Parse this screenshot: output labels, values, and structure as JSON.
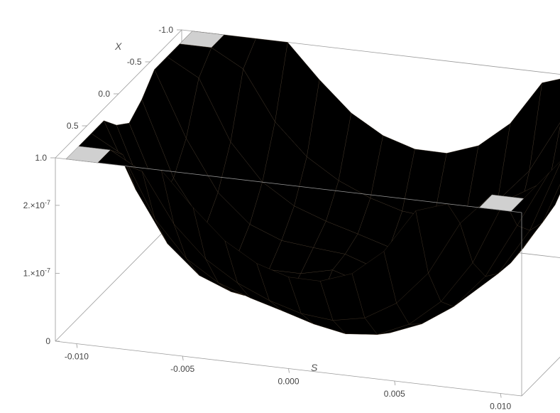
{
  "chart_data": {
    "type": "surface3d",
    "axes": {
      "s": {
        "label": "S",
        "range": [
          -0.011,
          0.011
        ],
        "ticks": [
          "-0.010",
          "-0.005",
          "0.000",
          "0.005",
          "0.010"
        ]
      },
      "x": {
        "label": "X",
        "range": [
          -1.0,
          1.0
        ],
        "ticks": [
          "-1.0",
          "-0.5",
          "0.0",
          "0.5",
          "1.0"
        ]
      },
      "z": {
        "range": [
          0,
          2.7e-07
        ],
        "ticks": [
          "0",
          "1.×10",
          "2.×10"
        ],
        "tick_exponent": "-7",
        "tick_values": [
          0,
          1e-07,
          2e-07
        ]
      }
    },
    "surface": {
      "description_free": true,
      "s_values": [
        -0.0105,
        -0.009,
        -0.0075,
        -0.006,
        -0.0045,
        -0.003,
        -0.0015,
        0.0,
        0.0015,
        0.003,
        0.0045,
        0.006,
        0.0075,
        0.009,
        0.0105
      ],
      "x_values": [
        -1.0,
        -0.8,
        -0.6,
        -0.4,
        -0.2,
        0.0,
        0.2,
        0.4,
        0.6,
        0.8,
        1.0
      ],
      "z_clip": 2.7e-07
    },
    "colors": {
      "surface_light": "#f9d43a",
      "surface_mid": "#f59a1f",
      "surface_dark": "#6b3a12",
      "cap": "#d0d0d0",
      "box": "#9a9a9a"
    }
  }
}
